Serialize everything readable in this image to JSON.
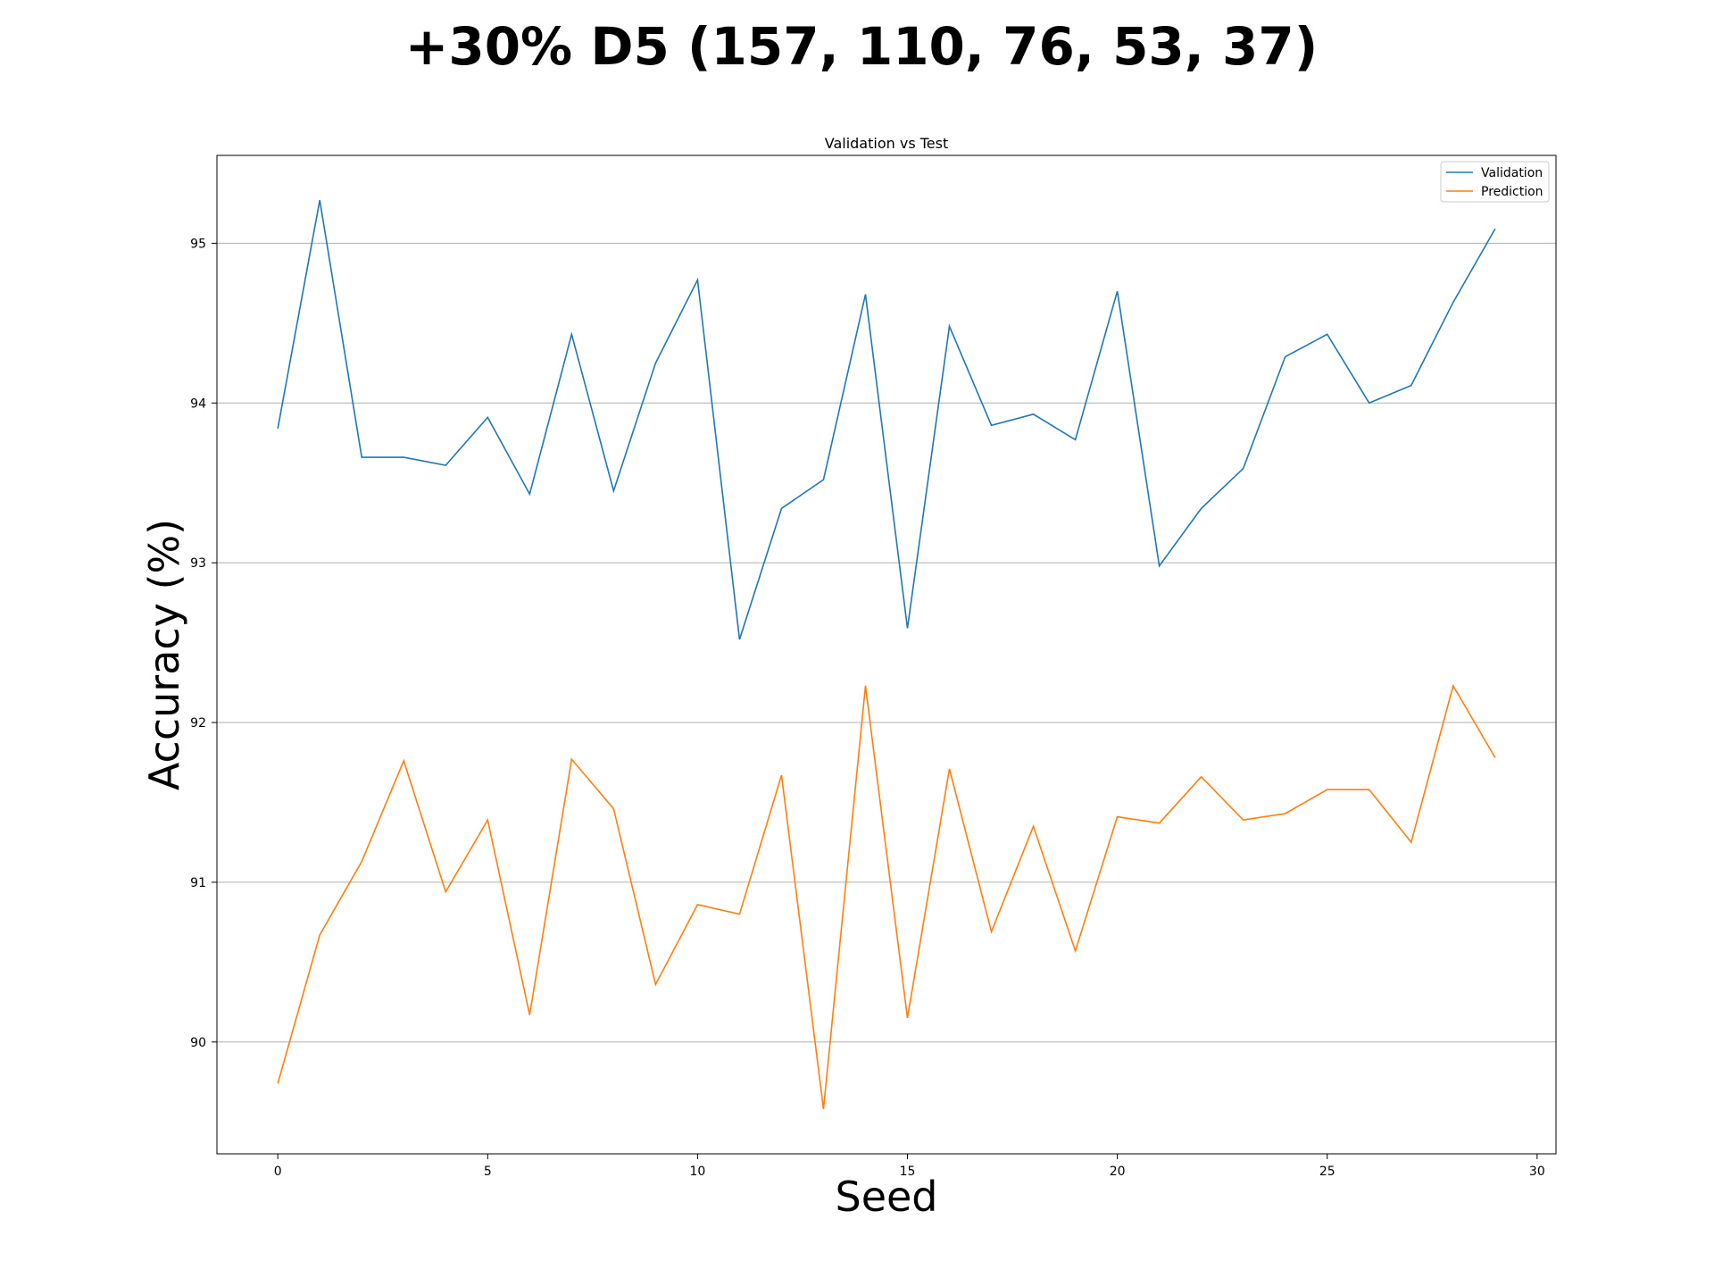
{
  "chart_data": {
    "type": "line",
    "suptitle": "+30% D5 (157, 110, 76, 53, 37)",
    "title": "Validation vs Test",
    "xlabel": "Seed",
    "ylabel": "Accuracy (%)",
    "xlim": [
      -1.45,
      30.45
    ],
    "ylim": [
      89.3,
      95.55
    ],
    "xticks": [
      0,
      5,
      10,
      15,
      20,
      25,
      30
    ],
    "yticks": [
      90,
      91,
      92,
      93,
      94,
      95
    ],
    "grid": "y-major",
    "legend_position": "top-right",
    "x": [
      0,
      1,
      2,
      3,
      4,
      5,
      6,
      7,
      8,
      9,
      10,
      11,
      12,
      13,
      14,
      15,
      16,
      17,
      18,
      19,
      20,
      21,
      22,
      23,
      24,
      25,
      26,
      27,
      28,
      29
    ],
    "series": [
      {
        "name": "Validation",
        "color": "#1f77b4",
        "values": [
          93.84,
          95.27,
          93.66,
          93.66,
          93.61,
          93.91,
          93.43,
          94.43,
          93.45,
          94.25,
          94.77,
          92.52,
          93.34,
          93.52,
          94.68,
          92.59,
          94.48,
          93.86,
          93.93,
          93.77,
          94.7,
          92.98,
          93.34,
          93.59,
          94.29,
          94.43,
          94.0,
          94.11,
          94.63,
          95.09
        ]
      },
      {
        "name": "Prediction",
        "color": "#ff7f0e",
        "values": [
          89.74,
          90.67,
          91.13,
          91.76,
          90.94,
          91.39,
          90.17,
          91.77,
          91.46,
          90.36,
          90.86,
          90.8,
          91.67,
          89.58,
          92.23,
          90.15,
          91.71,
          90.69,
          91.35,
          90.57,
          91.41,
          91.37,
          91.66,
          91.39,
          91.43,
          91.58,
          91.58,
          91.25,
          92.23,
          91.78
        ]
      }
    ]
  }
}
